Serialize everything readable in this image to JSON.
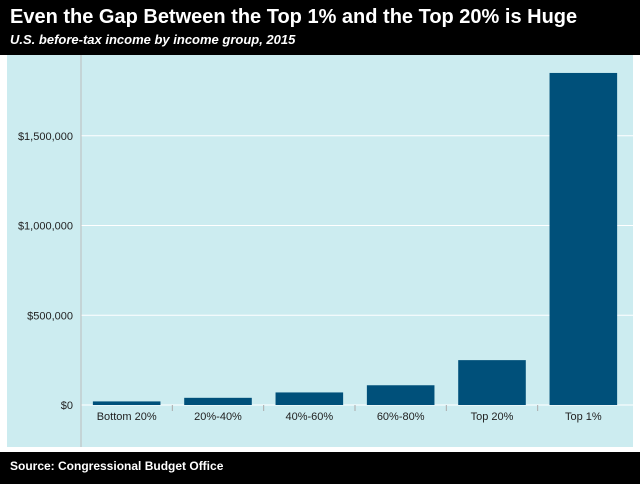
{
  "colors": {
    "plot_background": "#ccecf0",
    "bar": "#00507a",
    "grid": "#ffffff",
    "header_background": "#000000"
  },
  "header": {
    "title": "Even the Gap Between the Top 1% and the Top 20% is Huge",
    "subtitle": "U.S. before-tax income by income group, 2015"
  },
  "footer": {
    "source": "Source: Congressional Budget Office"
  },
  "chart_data": {
    "type": "bar",
    "categories": [
      "Bottom 20%",
      "20%-40%",
      "40%-60%",
      "60%-80%",
      "Top 20%",
      "Top 1%"
    ],
    "values": [
      20000,
      40000,
      70000,
      110000,
      250000,
      1850000
    ],
    "ylim": [
      0,
      1950000
    ],
    "yticks": [
      0,
      500000,
      1000000,
      1500000
    ],
    "ytick_labels": [
      "$0",
      "$500,000",
      "$1,000,000",
      "$1,500,000"
    ],
    "grid": true
  }
}
